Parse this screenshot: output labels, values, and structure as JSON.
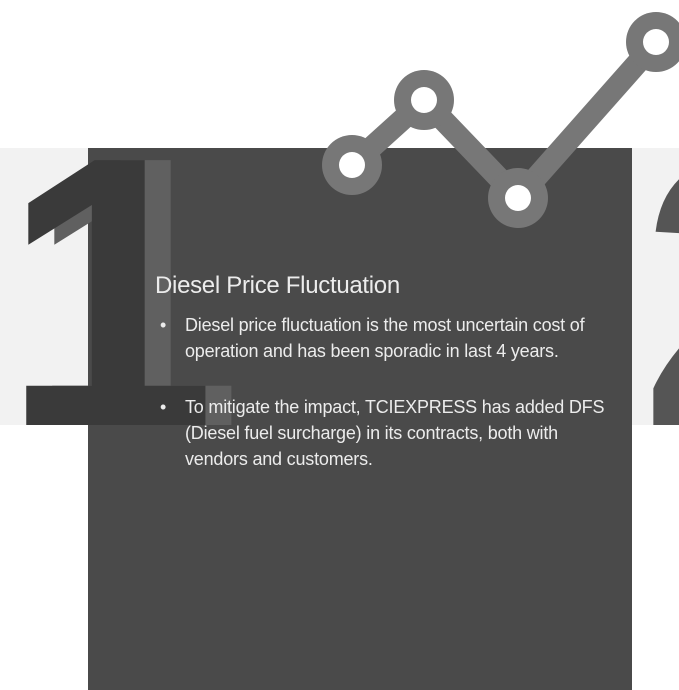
{
  "slide": {
    "number": "1",
    "next_number": "2",
    "title": "Diesel Price Fluctuation",
    "bullets": [
      "Diesel price fluctuation is the most uncertain cost of operation and has been sporadic in last 4 years.",
      "To mitigate the impact, TCIEXPRESS has added DFS (Diesel fuel surcharge) in its contracts, both with vendors and customers."
    ]
  }
}
